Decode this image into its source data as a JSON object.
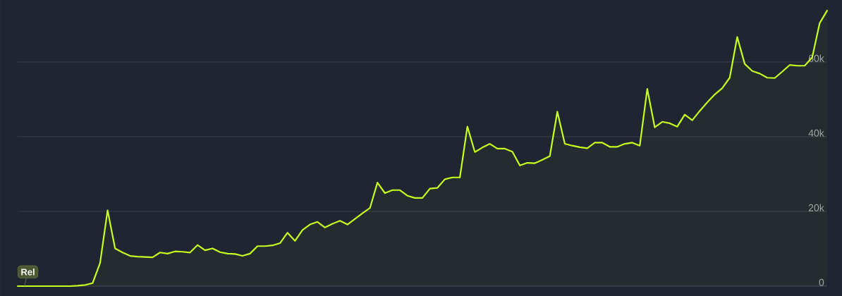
{
  "chart_data": {
    "type": "area",
    "categories": [
      null,
      null,
      null,
      null,
      null,
      null,
      null,
      null,
      null,
      null,
      null,
      null,
      null,
      null,
      null,
      null,
      null,
      null,
      null,
      null,
      null,
      null,
      null,
      null,
      null,
      null,
      null,
      null,
      null,
      null,
      null,
      null,
      null,
      null,
      null,
      null,
      null,
      null,
      null,
      null,
      null,
      null,
      null,
      null,
      null,
      null,
      null,
      null,
      null,
      null,
      null,
      null,
      null,
      null,
      null,
      null,
      null,
      null,
      null,
      null,
      null,
      null,
      null,
      null,
      null,
      null,
      null,
      null,
      null,
      null,
      null,
      null,
      null,
      null,
      null,
      null,
      null,
      null,
      null,
      null,
      null,
      null,
      null,
      null,
      null,
      null,
      null,
      null,
      null,
      null,
      null,
      null,
      null,
      null,
      null,
      null,
      null,
      null,
      null,
      null,
      null,
      null,
      null,
      null,
      null,
      null,
      null,
      null,
      null
    ],
    "series": [
      {
        "color": "#c6ff1f",
        "values": [
          0,
          0,
          0,
          0,
          0,
          0,
          0,
          0,
          100,
          300,
          800,
          6200,
          20300,
          10100,
          9000,
          8100,
          7900,
          7800,
          7700,
          9000,
          8700,
          9300,
          9200,
          9000,
          11000,
          9600,
          10100,
          9100,
          8700,
          8600,
          8100,
          8700,
          10700,
          10700,
          10900,
          11500,
          14300,
          12100,
          15000,
          16500,
          17200,
          15700,
          16700,
          17500,
          16500,
          18000,
          19500,
          20900,
          27700,
          24900,
          25700,
          25700,
          24200,
          23600,
          23600,
          26100,
          26300,
          28600,
          29100,
          29100,
          42700,
          35900,
          37100,
          38100,
          36800,
          36800,
          36000,
          32300,
          33000,
          32900,
          33800,
          34800,
          46700,
          38100,
          37600,
          37200,
          36900,
          38400,
          38400,
          37300,
          37300,
          38100,
          38400,
          37600,
          52800,
          42500,
          44000,
          43600,
          42700,
          45900,
          44400,
          46900,
          49200,
          51300,
          53000,
          55800,
          66700,
          59500,
          57600,
          56900,
          55800,
          55700,
          57400,
          59200,
          59000,
          59000,
          61200,
          70400,
          73800
        ]
      }
    ],
    "ylim": [
      0,
      76600
    ],
    "yticks": [
      0,
      {
        "value": 20000,
        "label": "20k"
      },
      {
        "value": 40000,
        "label": "40k"
      },
      {
        "value": 60000,
        "label": "60k"
      }
    ],
    "grid": "y",
    "annotations": [
      {
        "text": "Rel",
        "y": 0
      }
    ]
  }
}
